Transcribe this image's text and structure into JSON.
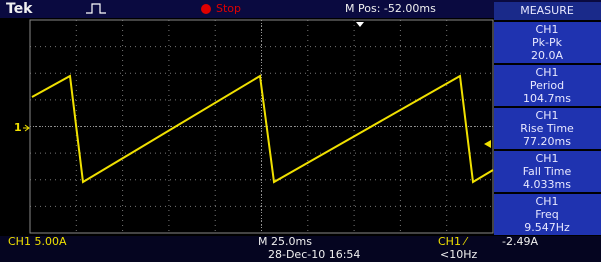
{
  "header": {
    "brand": "Tek",
    "status": "Stop",
    "position": "M Pos: -52.00ms"
  },
  "measure": {
    "title": "MEASURE",
    "items": [
      {
        "channel": "CH1",
        "label": "Pk-Pk",
        "value": "20.0A"
      },
      {
        "channel": "CH1",
        "label": "Period",
        "value": "104.7ms"
      },
      {
        "channel": "CH1",
        "label": "Rise Time",
        "value": "77.20ms"
      },
      {
        "channel": "CH1",
        "label": "Fall Time",
        "value": "4.033ms"
      },
      {
        "channel": "CH1",
        "label": "Freq",
        "value": "9.547Hz"
      }
    ]
  },
  "marker": "1",
  "footer": {
    "channel_scale": "CH1  5.00A",
    "timebase": "M 25.0ms",
    "datetime": "28-Dec-10 16:54",
    "trigger_source": "CH1 ⁄",
    "trigger_level": "-2.49A",
    "frequency": "<10Hz"
  }
}
